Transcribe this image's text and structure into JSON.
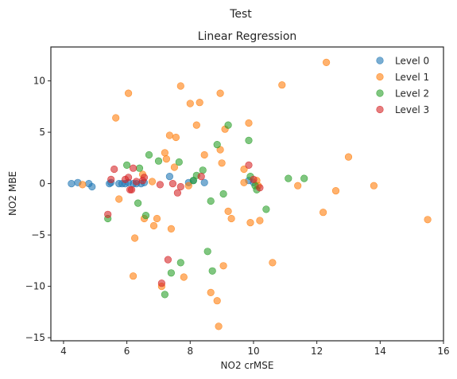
{
  "chart_data": {
    "type": "scatter",
    "suptitle": "Test",
    "title": "Linear Regression",
    "xlabel": "NO2 crMSE",
    "ylabel": "NO2 MBE",
    "xlim": [
      3.6,
      16.0
    ],
    "ylim": [
      -15.3,
      13.3
    ],
    "xticks": [
      4,
      6,
      8,
      10,
      12,
      14,
      16
    ],
    "yticks": [
      -15,
      -10,
      -5,
      0,
      5,
      10
    ],
    "grid": false,
    "legend_position": "top-right",
    "series": [
      {
        "name": "Level 0",
        "color": "#1f77b4",
        "points": [
          [
            4.25,
            0.0
          ],
          [
            4.45,
            0.1
          ],
          [
            4.8,
            0.0
          ],
          [
            4.9,
            -0.3
          ],
          [
            5.45,
            0.0
          ],
          [
            5.5,
            0.1
          ],
          [
            5.75,
            0.0
          ],
          [
            5.85,
            0.0
          ],
          [
            5.95,
            0.0
          ],
          [
            6.05,
            0.1
          ],
          [
            6.2,
            0.0
          ],
          [
            6.3,
            0.0
          ],
          [
            6.45,
            0.0
          ],
          [
            6.55,
            0.1
          ],
          [
            7.35,
            0.7
          ],
          [
            7.95,
            0.1
          ],
          [
            8.1,
            0.3
          ],
          [
            8.45,
            0.1
          ],
          [
            9.85,
            0.3
          ],
          [
            10.0,
            0.1
          ]
        ]
      },
      {
        "name": "Level 1",
        "color": "#ff7f0e",
        "points": [
          [
            4.6,
            -0.1
          ],
          [
            5.65,
            6.4
          ],
          [
            5.75,
            -1.5
          ],
          [
            6.05,
            8.8
          ],
          [
            6.25,
            -5.3
          ],
          [
            6.2,
            -9.0
          ],
          [
            6.5,
            0.9
          ],
          [
            6.55,
            -3.4
          ],
          [
            6.8,
            0.2
          ],
          [
            6.85,
            -4.1
          ],
          [
            6.95,
            -3.4
          ],
          [
            7.1,
            -10.0
          ],
          [
            7.2,
            3.0
          ],
          [
            7.25,
            2.4
          ],
          [
            7.35,
            4.7
          ],
          [
            7.4,
            -4.4
          ],
          [
            7.5,
            1.6
          ],
          [
            7.55,
            4.5
          ],
          [
            7.7,
            9.5
          ],
          [
            7.8,
            -9.1
          ],
          [
            7.95,
            -0.2
          ],
          [
            8.0,
            7.8
          ],
          [
            8.2,
            5.7
          ],
          [
            8.3,
            7.9
          ],
          [
            8.45,
            2.8
          ],
          [
            8.65,
            -10.6
          ],
          [
            8.85,
            -11.4
          ],
          [
            8.9,
            -13.9
          ],
          [
            8.95,
            8.8
          ],
          [
            8.95,
            3.3
          ],
          [
            9.0,
            2.0
          ],
          [
            9.05,
            -8.0
          ],
          [
            9.1,
            5.3
          ],
          [
            9.2,
            -2.7
          ],
          [
            9.3,
            -3.4
          ],
          [
            9.7,
            1.4
          ],
          [
            9.7,
            0.1
          ],
          [
            9.85,
            5.9
          ],
          [
            9.9,
            -3.8
          ],
          [
            10.1,
            0.3
          ],
          [
            10.15,
            -0.2
          ],
          [
            10.2,
            -3.6
          ],
          [
            10.6,
            -7.7
          ],
          [
            10.9,
            9.6
          ],
          [
            11.4,
            -0.2
          ],
          [
            12.2,
            -2.8
          ],
          [
            12.3,
            11.8
          ],
          [
            12.6,
            -0.7
          ],
          [
            13.0,
            2.6
          ],
          [
            13.8,
            -0.2
          ],
          [
            15.5,
            -3.5
          ]
        ]
      },
      {
        "name": "Level 2",
        "color": "#2ca02c",
        "points": [
          [
            5.4,
            -3.4
          ],
          [
            6.0,
            1.8
          ],
          [
            6.35,
            -1.9
          ],
          [
            6.4,
            1.5
          ],
          [
            6.6,
            -3.1
          ],
          [
            6.7,
            2.8
          ],
          [
            7.0,
            2.2
          ],
          [
            7.2,
            -10.8
          ],
          [
            7.4,
            -8.7
          ],
          [
            7.65,
            2.1
          ],
          [
            7.7,
            -7.7
          ],
          [
            8.1,
            0.3
          ],
          [
            8.2,
            0.8
          ],
          [
            8.4,
            1.3
          ],
          [
            8.55,
            -6.6
          ],
          [
            8.65,
            -1.7
          ],
          [
            8.7,
            -8.5
          ],
          [
            8.85,
            3.8
          ],
          [
            9.05,
            -1.0
          ],
          [
            9.2,
            5.7
          ],
          [
            9.85,
            4.2
          ],
          [
            9.9,
            0.7
          ],
          [
            10.05,
            -0.2
          ],
          [
            10.1,
            -0.6
          ],
          [
            11.1,
            0.5
          ],
          [
            11.6,
            0.5
          ],
          [
            10.4,
            -2.5
          ]
        ]
      },
      {
        "name": "Level 3",
        "color": "#d62728",
        "points": [
          [
            5.4,
            -3.0
          ],
          [
            5.5,
            0.4
          ],
          [
            5.6,
            1.4
          ],
          [
            5.95,
            0.4
          ],
          [
            6.05,
            0.6
          ],
          [
            6.1,
            -0.6
          ],
          [
            6.15,
            -0.6
          ],
          [
            6.2,
            1.5
          ],
          [
            6.3,
            0.2
          ],
          [
            6.5,
            0.3
          ],
          [
            6.55,
            0.6
          ],
          [
            7.05,
            -0.1
          ],
          [
            7.1,
            -9.7
          ],
          [
            7.3,
            -7.4
          ],
          [
            7.45,
            0.0
          ],
          [
            7.6,
            -0.9
          ],
          [
            7.7,
            -0.3
          ],
          [
            8.35,
            0.7
          ],
          [
            9.85,
            1.8
          ],
          [
            10.0,
            0.4
          ],
          [
            10.2,
            -0.4
          ]
        ]
      }
    ]
  }
}
